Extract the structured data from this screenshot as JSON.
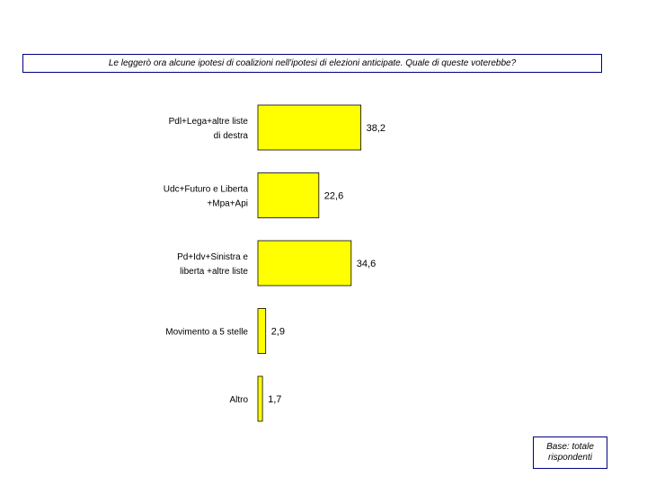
{
  "question": "Le leggerò ora alcune ipotesi di coalizioni nell'ipotesi di elezioni anticipate. Quale di queste voterebbe?",
  "base_note": [
    "Base: totale",
    "rispondenti"
  ],
  "colors": {
    "bar": "#ffff00",
    "border": "#000080"
  },
  "chart_data": {
    "type": "bar",
    "orientation": "horizontal",
    "categories": [
      [
        "Pdl+Lega+altre liste",
        "di destra"
      ],
      [
        "Udc+Futuro e Liberta",
        "+Mpa+Api"
      ],
      [
        "Pd+Idv+Sinistra e",
        "liberta +altre liste"
      ],
      [
        "Movimento a 5 stelle"
      ],
      [
        "Altro"
      ]
    ],
    "values": [
      38.2,
      22.6,
      34.6,
      2.9,
      1.7
    ],
    "value_labels": [
      "38,2",
      "22,6",
      "34,6",
      "2,9",
      "1,7"
    ],
    "grid": false,
    "legend": "none"
  }
}
